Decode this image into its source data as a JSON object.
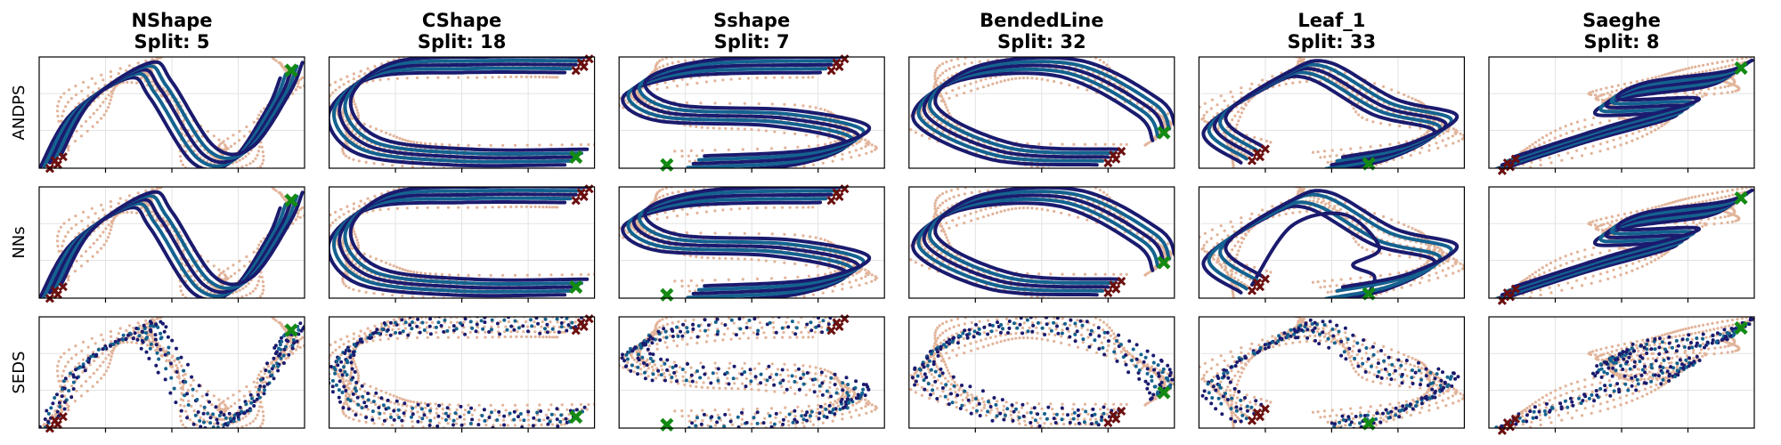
{
  "figure": {
    "rows": [
      "ANDPS",
      "NNs",
      "SEDS"
    ],
    "columns": [
      {
        "name": "NShape",
        "split_label": "Split: 5"
      },
      {
        "name": "CShape",
        "split_label": "Split: 18"
      },
      {
        "name": "Sshape",
        "split_label": "Split: 7"
      },
      {
        "name": "BendedLine",
        "split_label": "Split: 32"
      },
      {
        "name": "Leaf_1",
        "split_label": "Split: 33"
      },
      {
        "name": "Saeghe",
        "split_label": "Split: 8"
      }
    ]
  },
  "colors": {
    "demonstration": "#e2b49a",
    "trajectory_dark": "#1a1a6e",
    "trajectory_light": "#14628f",
    "start_marker": "#6b0f0f",
    "target_marker": "#138a13"
  },
  "chart_data": {
    "type": "scatter",
    "grid": true,
    "legend": "none",
    "series_roles": [
      "demonstrations",
      "reproductions",
      "start points",
      "target"
    ]
  }
}
